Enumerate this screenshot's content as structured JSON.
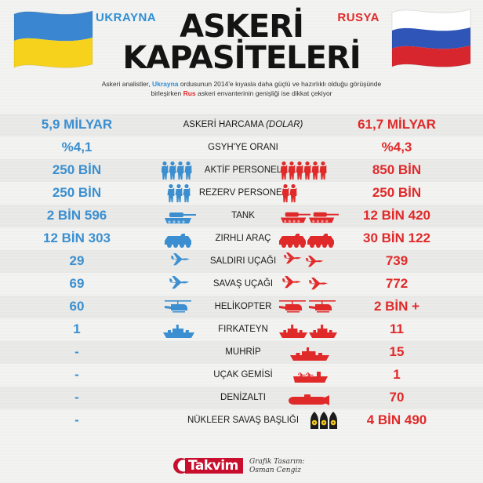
{
  "header": {
    "country_left": "UKRAYNA",
    "country_right": "RUSYA",
    "title_line1": "ASKERİ",
    "title_line2": "KAPASİTELERİ",
    "subtitle_part1": "Askeri analistler, ",
    "subtitle_ua": "Ukrayna",
    "subtitle_part2": " ordusunun 2014'e kıyasla daha güçlü ve hazırlıklı olduğu görüşünde birleşirken ",
    "subtitle_ru": "Rus",
    "subtitle_part3": " askeri envanterinin genişliği ise dikkat çekiyor"
  },
  "colors": {
    "ukraine": "#3b8fd0",
    "russia": "#e02a2a",
    "flag_blue": "#3a86d0",
    "flag_yellow": "#f6d21c"
  },
  "rows": [
    {
      "label": "ASKERİ HARCAMA ",
      "label_em": "(DOLAR)",
      "ukraine": "5,9 MİLYAR",
      "russia": "61,7 MİLYAR",
      "ua_icon": "",
      "ru_icon": ""
    },
    {
      "label": "GSYH'YE ORANI",
      "label_em": "",
      "ukraine": "%4,1",
      "russia": "%4,3",
      "ua_icon": "",
      "ru_icon": ""
    },
    {
      "label": "AKTİF PERSONEL",
      "label_em": "",
      "ukraine": "250 BİN",
      "russia": "850 BİN",
      "ua_icon": "soldiers-icon",
      "ru_icon": "soldiers-icon"
    },
    {
      "label": "REZERV PERSONEL",
      "label_em": "",
      "ukraine": "250 BİN",
      "russia": "250 BİN",
      "ua_icon": "reserve-soldiers-icon",
      "ru_icon": "reserve-soldiers-icon"
    },
    {
      "label": "TANK",
      "label_em": "",
      "ukraine": "2 BİN 596",
      "russia": "12 BİN 420",
      "ua_icon": "tank-icon",
      "ru_icon": "tank-icon"
    },
    {
      "label": "ZIRHLI ARAÇ",
      "label_em": "",
      "ukraine": "12 BİN 303",
      "russia": "30 BİN 122",
      "ua_icon": "armored-vehicle-icon",
      "ru_icon": "armored-vehicle-icon"
    },
    {
      "label": "SALDIRI UÇAĞI",
      "label_em": "",
      "ukraine": "29",
      "russia": "739",
      "ua_icon": "attack-jet-icon",
      "ru_icon": "attack-jet-icon"
    },
    {
      "label": "SAVAŞ UÇAĞI",
      "label_em": "",
      "ukraine": "69",
      "russia": "772",
      "ua_icon": "fighter-jet-icon",
      "ru_icon": "fighter-jet-icon"
    },
    {
      "label": "HELİKOPTER",
      "label_em": "",
      "ukraine": "60",
      "russia": "2 BİN +",
      "ua_icon": "helicopter-icon",
      "ru_icon": "helicopter-icon"
    },
    {
      "label": "FIRKATEYN",
      "label_em": "",
      "ukraine": "1",
      "russia": "11",
      "ua_icon": "frigate-icon",
      "ru_icon": "frigate-icon"
    },
    {
      "label": "MUHRİP",
      "label_em": "",
      "ukraine": "-",
      "russia": "15",
      "ua_icon": "",
      "ru_icon": "destroyer-icon"
    },
    {
      "label": "UÇAK GEMİSİ",
      "label_em": "",
      "ukraine": "-",
      "russia": "1",
      "ua_icon": "",
      "ru_icon": "aircraft-carrier-icon"
    },
    {
      "label": "DENİZALTI",
      "label_em": "",
      "ukraine": "-",
      "russia": "70",
      "ua_icon": "",
      "ru_icon": "submarine-icon"
    },
    {
      "label": "NÜKLEER SAVAŞ BAŞLIĞI",
      "label_em": "",
      "ukraine": "-",
      "russia": "4 BİN 490",
      "ua_icon": "",
      "ru_icon": "nuclear-warhead-icon"
    }
  ],
  "footer": {
    "logo": "Takvim",
    "credit_line1": "Grafik Tasarım:",
    "credit_line2": "Osman Cengiz"
  }
}
